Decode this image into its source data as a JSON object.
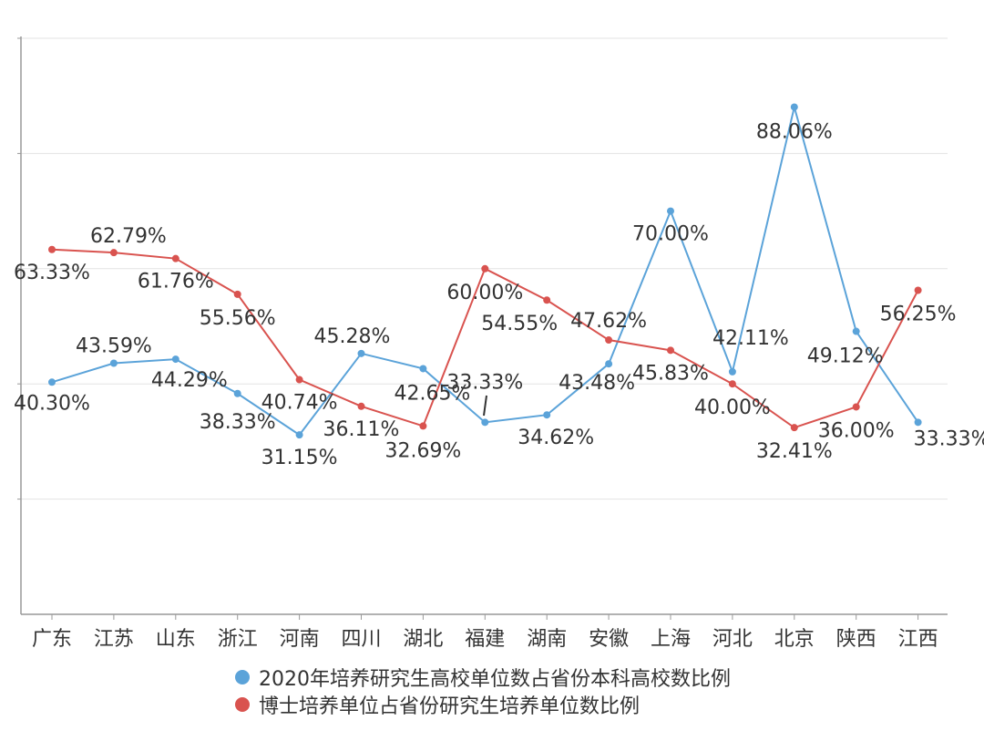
{
  "chart_data": {
    "type": "line",
    "title": "",
    "xlabel": "",
    "ylabel": "",
    "ylim": [
      0,
      100
    ],
    "grid": true,
    "legend_position": "bottom",
    "categories": [
      "广东",
      "江苏",
      "山东",
      "浙江",
      "河南",
      "四川",
      "湖北",
      "福建",
      "湖南",
      "安徽",
      "上海",
      "河北",
      "北京",
      "陕西",
      "江西"
    ],
    "series": [
      {
        "name": "2020年培养研究生高校单位数占省份本科高校数比例",
        "color": "#5ba3d9",
        "values": [
          40.3,
          43.59,
          44.29,
          38.33,
          31.15,
          45.28,
          42.65,
          33.33,
          34.62,
          43.48,
          70.0,
          42.11,
          88.06,
          49.12,
          33.33
        ],
        "labels": [
          "40.30%",
          "43.59%",
          "44.29%",
          "38.33%",
          "31.15%",
          "45.28%",
          "42.65%",
          "33.33%",
          "34.62%",
          "43.48%",
          "70.00%",
          "42.11%",
          "88.06%",
          "49.12%",
          "33.33%"
        ]
      },
      {
        "name": "博士培养单位占省份研究生培养单位数比例",
        "color": "#d9534f",
        "values": [
          63.33,
          62.79,
          61.76,
          55.56,
          40.74,
          36.11,
          32.69,
          60.0,
          54.55,
          47.62,
          45.83,
          40.0,
          32.41,
          36.0,
          56.25
        ],
        "labels": [
          "63.33%",
          "62.79%",
          "61.76%",
          "55.56%",
          "40.74%",
          "36.11%",
          "32.69%",
          "60.00%",
          "54.55%",
          "47.62%",
          "45.83%",
          "40.00%",
          "32.41%",
          "36.00%",
          "56.25%"
        ]
      }
    ]
  }
}
